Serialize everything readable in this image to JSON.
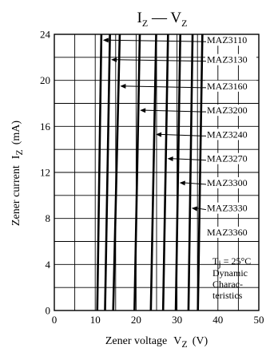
{
  "chart_data": {
    "type": "line",
    "title": {
      "main": "I",
      "main_sub": "Z",
      "dash": " — ",
      "second": "V",
      "second_sub": "Z"
    },
    "xlabel": {
      "text": "Zener voltage",
      "symbol": "V",
      "symbol_sub": "Z",
      "unit": "(V)"
    },
    "ylabel": {
      "text": "Zener current",
      "symbol": "I",
      "symbol_sub": "Z",
      "unit": "(mA)"
    },
    "xlim": [
      0,
      50
    ],
    "ylim": [
      0,
      24
    ],
    "xticks": [
      "0",
      "10",
      "20",
      "30",
      "40",
      "50"
    ],
    "yticks": [
      "0",
      "4",
      "8",
      "12",
      "16",
      "20",
      "24"
    ],
    "grid": true,
    "note": {
      "line1_main": "T",
      "line1_sub": "j",
      "line1_rest": " = 25°C",
      "line2": "Dynamic",
      "line3": "Charac-",
      "line4": "teristics"
    },
    "series": [
      {
        "name": "MAZ3110",
        "pairs": [
          [
            10.5,
            0
          ],
          [
            11.5,
            24
          ]
        ],
        "label_at": 23.5
      },
      {
        "name": "MAZ3130",
        "pairs": [
          [
            12.4,
            0
          ],
          [
            13.6,
            24
          ]
        ],
        "label_at": 21.8
      },
      {
        "name": "MAZ3160",
        "pairs": [
          [
            14.4,
            0
          ],
          [
            16.0,
            24
          ]
        ],
        "label_at": 19.5
      },
      {
        "name": "MAZ3200",
        "pairs": [
          [
            19.6,
            0
          ],
          [
            20.9,
            24
          ]
        ],
        "label_at": 17.4
      },
      {
        "name": "MAZ3240",
        "pairs": [
          [
            23.6,
            0
          ],
          [
            24.9,
            24
          ]
        ],
        "label_at": 15.3
      },
      {
        "name": "MAZ3270",
        "pairs": [
          [
            26.6,
            0
          ],
          [
            27.8,
            24
          ]
        ],
        "label_at": 13.2
      },
      {
        "name": "MAZ3300",
        "pairs": [
          [
            29.7,
            0
          ],
          [
            30.8,
            24
          ]
        ],
        "label_at": 11.1
      },
      {
        "name": "MAZ3330",
        "pairs": [
          [
            32.8,
            0
          ],
          [
            33.8,
            24
          ]
        ],
        "label_at": 8.9
      },
      {
        "name": "MAZ3360",
        "pairs": [
          [
            35.1,
            0
          ],
          [
            36.2,
            24
          ]
        ],
        "label_at": 6.8
      }
    ]
  }
}
